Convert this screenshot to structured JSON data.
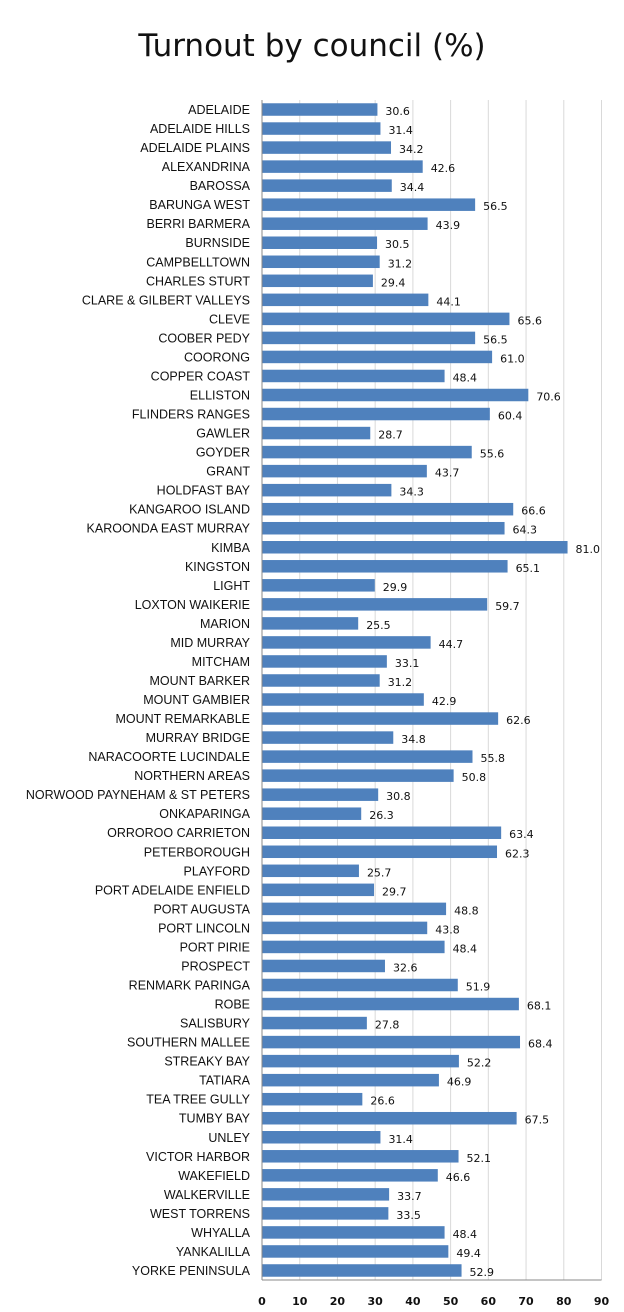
{
  "chart_data": {
    "type": "bar",
    "orientation": "horizontal",
    "title": "Turnout by council (%)",
    "xlabel": "",
    "ylabel": "",
    "xlim": [
      0,
      90
    ],
    "xticks": [
      0,
      10,
      20,
      30,
      40,
      50,
      60,
      70,
      80,
      90
    ],
    "grid": true,
    "bar_color": "#4f81bd",
    "categories": [
      "ADELAIDE",
      "ADELAIDE HILLS",
      "ADELAIDE PLAINS",
      "ALEXANDRINA",
      "BAROSSA",
      "BARUNGA WEST",
      "BERRI BARMERA",
      "BURNSIDE",
      "CAMPBELLTOWN",
      "CHARLES STURT",
      "CLARE & GILBERT VALLEYS",
      "CLEVE",
      "COOBER PEDY",
      "COORONG",
      "COPPER COAST",
      "ELLISTON",
      "FLINDERS RANGES",
      "GAWLER",
      "GOYDER",
      "GRANT",
      "HOLDFAST BAY",
      "KANGAROO ISLAND",
      "KAROONDA EAST MURRAY",
      "KIMBA",
      "KINGSTON",
      "LIGHT",
      "LOXTON WAIKERIE",
      "MARION",
      "MID MURRAY",
      "MITCHAM",
      "MOUNT BARKER",
      "MOUNT GAMBIER",
      "MOUNT REMARKABLE",
      "MURRAY BRIDGE",
      "NARACOORTE LUCINDALE",
      "NORTHERN AREAS",
      "NORWOOD PAYNEHAM & ST PETERS",
      "ONKAPARINGA",
      "ORROROO CARRIETON",
      "PETERBOROUGH",
      "PLAYFORD",
      "PORT ADELAIDE ENFIELD",
      "PORT AUGUSTA",
      "PORT LINCOLN",
      "PORT PIRIE",
      "PROSPECT",
      "RENMARK PARINGA",
      "ROBE",
      "SALISBURY",
      "SOUTHERN MALLEE",
      "STREAKY BAY",
      "TATIARA",
      "TEA TREE GULLY",
      "TUMBY BAY",
      "UNLEY",
      "VICTOR HARBOR",
      "WAKEFIELD",
      "WALKERVILLE",
      "WEST TORRENS",
      "WHYALLA",
      "YANKALILLA",
      "YORKE PENINSULA"
    ],
    "values": [
      "30.6",
      "31.4",
      "34.2",
      "42.6",
      "34.4",
      "56.5",
      "43.9",
      "30.5",
      "31.2",
      "29.4",
      "44.1",
      "65.6",
      "56.5",
      "61.0",
      "48.4",
      "70.6",
      "60.4",
      "28.7",
      "55.6",
      "43.7",
      "34.3",
      "66.6",
      "64.3",
      "81.0",
      "65.1",
      "29.9",
      "59.7",
      "25.5",
      "44.7",
      "33.1",
      "31.2",
      "42.9",
      "62.6",
      "34.8",
      "55.8",
      "50.8",
      "30.8",
      "26.3",
      "63.4",
      "62.3",
      "25.7",
      "29.7",
      "48.8",
      "43.8",
      "48.4",
      "32.6",
      "51.9",
      "68.1",
      "27.8",
      "68.4",
      "52.2",
      "46.9",
      "26.6",
      "67.5",
      "31.4",
      "52.1",
      "46.6",
      "33.7",
      "33.5",
      "48.4",
      "49.4",
      "52.9"
    ]
  }
}
